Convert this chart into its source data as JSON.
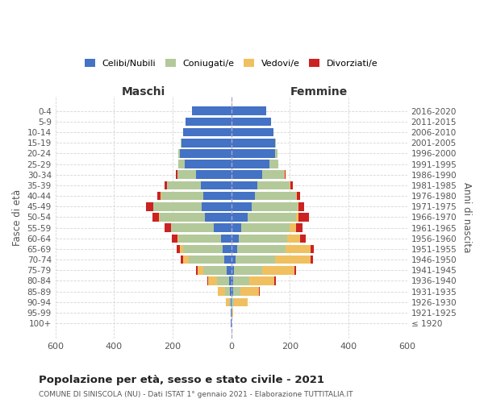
{
  "age_groups": [
    "100+",
    "95-99",
    "90-94",
    "85-89",
    "80-84",
    "75-79",
    "70-74",
    "65-69",
    "60-64",
    "55-59",
    "50-54",
    "45-49",
    "40-44",
    "35-39",
    "30-34",
    "25-29",
    "20-24",
    "15-19",
    "10-14",
    "5-9",
    "0-4"
  ],
  "birth_years": [
    "≤ 1920",
    "1921-1925",
    "1926-1930",
    "1931-1935",
    "1936-1940",
    "1941-1945",
    "1946-1950",
    "1951-1955",
    "1956-1960",
    "1961-1965",
    "1966-1970",
    "1971-1975",
    "1976-1980",
    "1981-1985",
    "1986-1990",
    "1991-1995",
    "1996-2000",
    "2001-2005",
    "2006-2010",
    "2011-2015",
    "2016-2020"
  ],
  "colors": {
    "celibe": "#4472c4",
    "coniugato": "#b3c99a",
    "vedovo": "#f0c060",
    "divorziato": "#cc2222"
  },
  "males": {
    "celibe": [
      1,
      1,
      2,
      5,
      8,
      15,
      25,
      30,
      35,
      60,
      90,
      100,
      95,
      105,
      120,
      160,
      175,
      170,
      165,
      155,
      135
    ],
    "coniugato": [
      0,
      0,
      5,
      15,
      40,
      80,
      120,
      135,
      145,
      145,
      155,
      165,
      145,
      115,
      65,
      20,
      5,
      2,
      0,
      0,
      0
    ],
    "vedovo": [
      1,
      1,
      12,
      25,
      30,
      20,
      20,
      10,
      5,
      2,
      2,
      1,
      1,
      0,
      0,
      0,
      0,
      0,
      0,
      0,
      0
    ],
    "divorziato": [
      0,
      0,
      0,
      1,
      5,
      5,
      8,
      12,
      18,
      22,
      22,
      25,
      12,
      8,
      3,
      1,
      0,
      0,
      0,
      0,
      0
    ]
  },
  "females": {
    "nubile": [
      1,
      1,
      2,
      5,
      6,
      10,
      15,
      20,
      25,
      35,
      55,
      70,
      80,
      90,
      105,
      130,
      150,
      150,
      145,
      135,
      120
    ],
    "coniugata": [
      0,
      0,
      8,
      25,
      55,
      95,
      135,
      165,
      165,
      165,
      165,
      155,
      140,
      110,
      75,
      30,
      8,
      2,
      0,
      0,
      0
    ],
    "vedova": [
      1,
      5,
      45,
      65,
      85,
      110,
      120,
      85,
      45,
      20,
      10,
      5,
      3,
      2,
      1,
      0,
      0,
      0,
      0,
      0,
      0
    ],
    "divorziata": [
      0,
      0,
      0,
      2,
      5,
      5,
      8,
      10,
      18,
      22,
      35,
      18,
      12,
      8,
      3,
      1,
      0,
      0,
      0,
      0,
      0
    ]
  },
  "title": "Popolazione per età, sesso e stato civile - 2021",
  "subtitle": "COMUNE DI SINISCOLA (NU) - Dati ISTAT 1° gennaio 2021 - Elaborazione TUTTITALIA.IT",
  "xlabel_left": "Maschi",
  "xlabel_right": "Femmine",
  "ylabel_left": "Fasce di età",
  "ylabel_right": "Anni di nascita",
  "xlim": 600,
  "background_color": "#ffffff",
  "grid_color": "#cccccc"
}
